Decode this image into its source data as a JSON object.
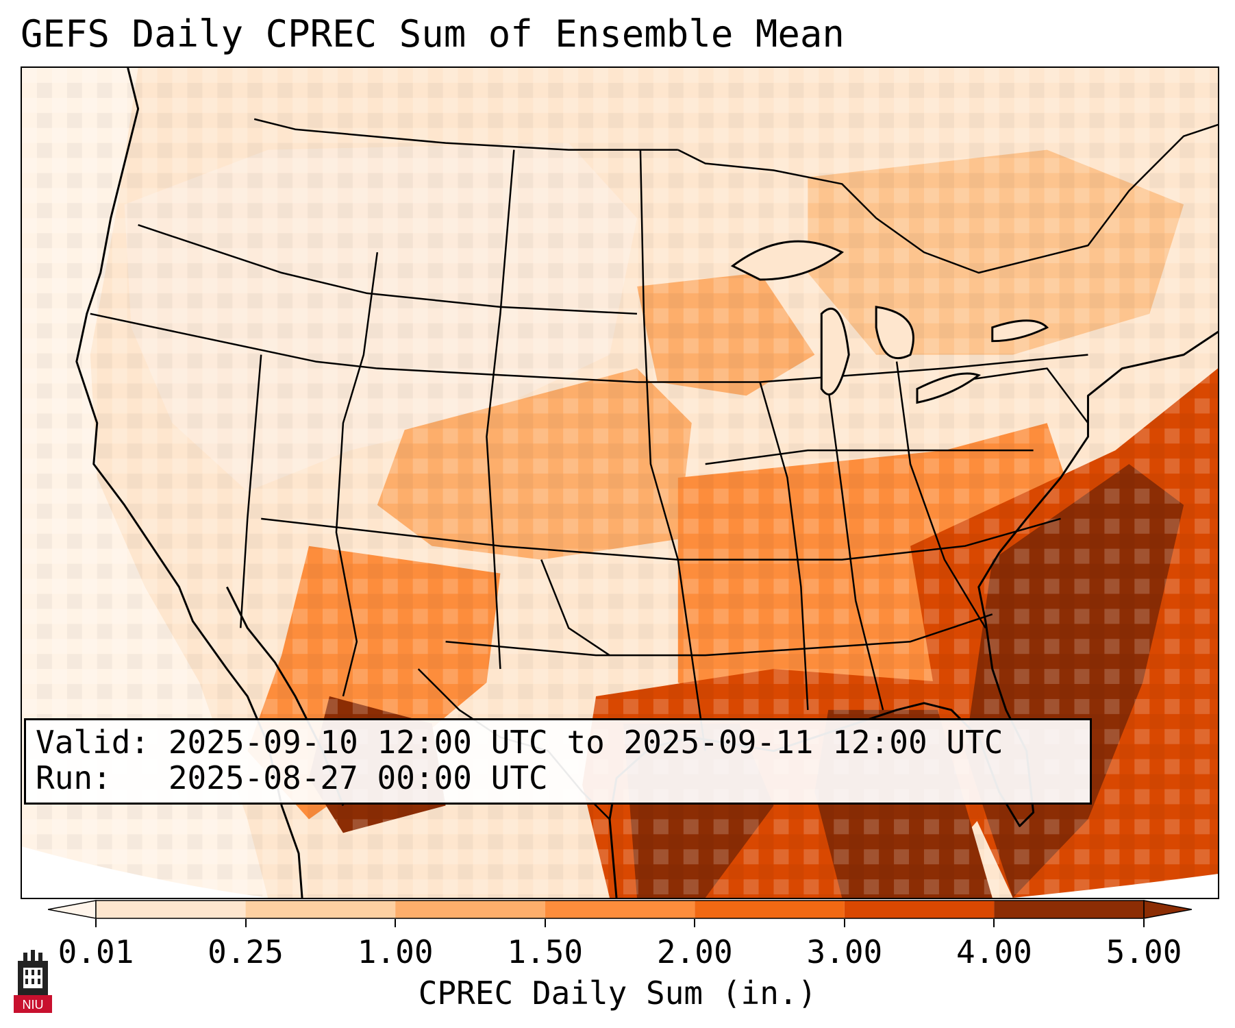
{
  "title": "GEFS Daily CPREC Sum of Ensemble Mean",
  "info": {
    "valid_line": "Valid: 2025-09-10 12:00 UTC to 2025-09-11 12:00 UTC",
    "run_line": "Run:   2025-08-27 00:00 UTC"
  },
  "colorbar": {
    "label": "CPREC Daily Sum (in.)",
    "ticks": [
      "0.01",
      "0.25",
      "1.00",
      "1.50",
      "2.00",
      "3.00",
      "4.00",
      "5.00"
    ],
    "colors": [
      "#fff5eb",
      "#fee6ce",
      "#fdd0a2",
      "#fdae6b",
      "#fd8d3c",
      "#f16913",
      "#d94801",
      "#8c2d04"
    ],
    "extend": "both"
  },
  "logo": {
    "text": "NIU",
    "icon": "university-tower-icon"
  }
}
